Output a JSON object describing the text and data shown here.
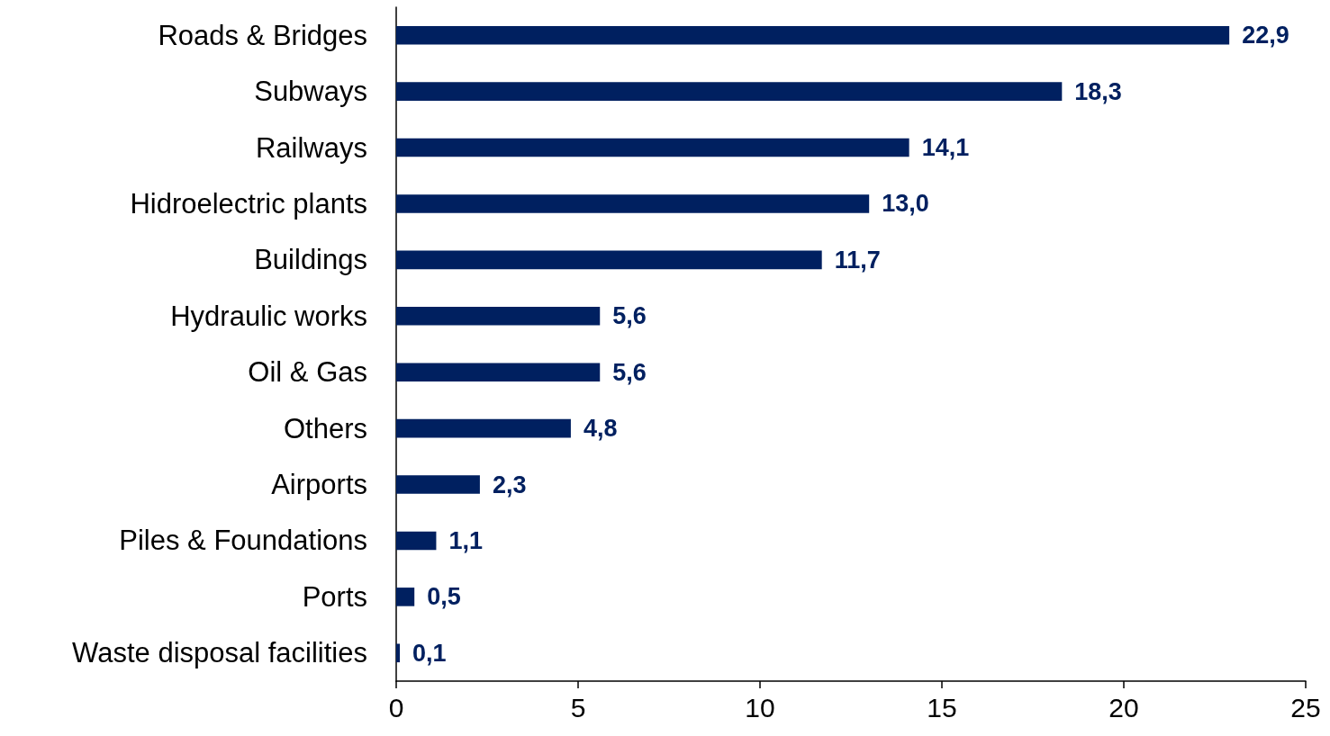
{
  "chart_data": {
    "type": "bar",
    "orientation": "horizontal",
    "categories": [
      "Roads & Bridges",
      "Subways",
      "Railways",
      "Hidroelectric plants",
      "Buildings",
      "Hydraulic works",
      "Oil & Gas",
      "Others",
      "Airports",
      "Piles & Foundations",
      "Ports",
      "Waste disposal facilities"
    ],
    "values": [
      22.9,
      18.3,
      14.1,
      13.0,
      11.7,
      5.6,
      5.6,
      4.8,
      2.3,
      1.1,
      0.5,
      0.1
    ],
    "value_labels": [
      "22,9",
      "18,3",
      "14,1",
      "13,0",
      "11,7",
      "5,6",
      "5,6",
      "4,8",
      "2,3",
      "1,1",
      "0,5",
      "0,1"
    ],
    "color": "#002060",
    "xlim": [
      0,
      25
    ],
    "xticks": [
      0,
      5,
      10,
      15,
      20,
      25
    ]
  }
}
